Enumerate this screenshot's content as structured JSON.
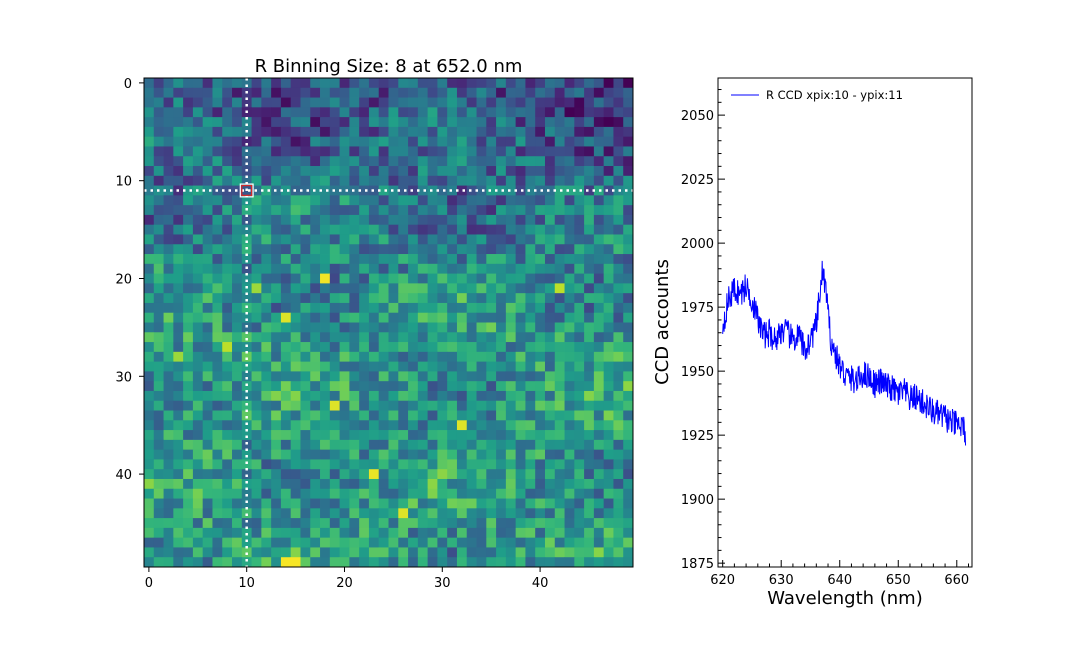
{
  "chart_data": [
    {
      "type": "heatmap",
      "title": "R Binning Size: 8 at 652.0 nm",
      "xlim": [
        -0.5,
        49.5
      ],
      "ylim": [
        49.5,
        -0.5
      ],
      "xticks": [
        0,
        10,
        20,
        30,
        40
      ],
      "yticks": [
        0,
        10,
        20,
        30,
        40
      ],
      "xtick_labels": [
        "0",
        "10",
        "20",
        "30",
        "40"
      ],
      "ytick_labels": [
        "0",
        "10",
        "20",
        "30",
        "40"
      ],
      "grid_size": [
        50,
        50
      ],
      "colormap": "viridis",
      "crosshair": {
        "x": 10,
        "y": 11,
        "color": "#ffffff",
        "marker_color": "#d62728"
      },
      "value_range": [
        0,
        1
      ],
      "hot_pixels": [
        {
          "x": 18,
          "y": 20,
          "value": 0.98
        },
        {
          "x": 14,
          "y": 24,
          "value": 0.95
        },
        {
          "x": 19,
          "y": 33,
          "value": 0.95
        },
        {
          "x": 32,
          "y": 35,
          "value": 0.95
        },
        {
          "x": 23,
          "y": 40,
          "value": 0.97
        },
        {
          "x": 26,
          "y": 44,
          "value": 0.95
        },
        {
          "x": 14,
          "y": 49,
          "value": 0.99
        },
        {
          "x": 15,
          "y": 49,
          "value": 0.99
        },
        {
          "x": 42,
          "y": 21,
          "value": 0.9
        },
        {
          "x": 8,
          "y": 27,
          "value": 0.9
        },
        {
          "x": 3,
          "y": 28,
          "value": 0.85
        },
        {
          "x": 11,
          "y": 21,
          "value": 0.85
        }
      ]
    },
    {
      "type": "line",
      "xlabel": "Wavelength (nm)",
      "ylabel": "CCD accounts",
      "xlim": [
        619.2,
        662.6
      ],
      "ylim": [
        1873.5,
        2064.5
      ],
      "xticks": [
        620,
        630,
        640,
        650,
        660
      ],
      "yticks": [
        1875,
        1900,
        1925,
        1950,
        1975,
        2000,
        2025,
        2050
      ],
      "xtick_labels": [
        "620",
        "630",
        "640",
        "650",
        "660"
      ],
      "ytick_labels": [
        "1875",
        "1900",
        "1925",
        "1950",
        "1975",
        "2000",
        "2025",
        "2050"
      ],
      "legend_position": "top-left",
      "series": [
        {
          "name": "R CCD xpix:10 - ypix:11",
          "color": "#0000ff",
          "x": [
            620.0,
            621.0,
            622.0,
            623.0,
            624.0,
            625.0,
            626.0,
            627.0,
            628.0,
            629.0,
            630.0,
            631.0,
            632.0,
            633.0,
            634.0,
            635.0,
            636.0,
            636.5,
            637.0,
            637.5,
            638.0,
            638.5,
            639.0,
            640.0,
            641.0,
            642.0,
            643.0,
            644.0,
            645.0,
            646.0,
            647.0,
            648.0,
            649.0,
            650.0,
            651.0,
            652.0,
            653.0,
            654.0,
            655.0,
            656.0,
            657.0,
            658.0,
            659.0,
            660.0,
            661.0,
            661.5
          ],
          "y": [
            1968,
            1978,
            1982,
            1980,
            1983,
            1978,
            1970,
            1964,
            1965,
            1962,
            1966,
            1965,
            1962,
            1964,
            1958,
            1962,
            1968,
            1978,
            1988,
            1985,
            1972,
            1962,
            1958,
            1952,
            1948,
            1947,
            1946,
            1949,
            1948,
            1945,
            1946,
            1944,
            1943,
            1941,
            1942,
            1939,
            1940,
            1938,
            1936,
            1934,
            1933,
            1932,
            1930,
            1929,
            1928,
            1926
          ]
        }
      ]
    }
  ]
}
